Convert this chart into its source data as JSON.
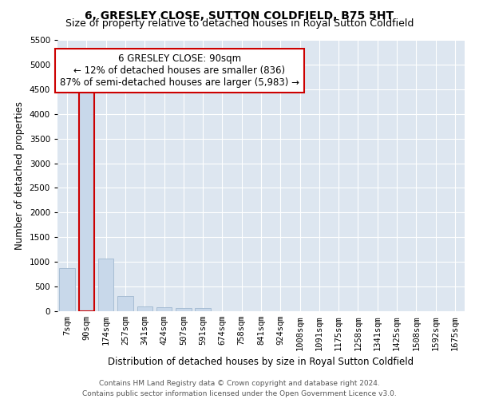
{
  "title": "6, GRESLEY CLOSE, SUTTON COLDFIELD, B75 5HT",
  "subtitle": "Size of property relative to detached houses in Royal Sutton Coldfield",
  "xlabel": "Distribution of detached houses by size in Royal Sutton Coldfield",
  "ylabel": "Number of detached properties",
  "footer_line1": "Contains HM Land Registry data © Crown copyright and database right 2024.",
  "footer_line2": "Contains public sector information licensed under the Open Government Licence v3.0.",
  "annotation_line1": "6 GRESLEY CLOSE: 90sqm",
  "annotation_line2": "← 12% of detached houses are smaller (836)",
  "annotation_line3": "87% of semi-detached houses are larger (5,983) →",
  "categories": [
    "7sqm",
    "90sqm",
    "174sqm",
    "257sqm",
    "341sqm",
    "424sqm",
    "507sqm",
    "591sqm",
    "674sqm",
    "758sqm",
    "841sqm",
    "924sqm",
    "1008sqm",
    "1091sqm",
    "1175sqm",
    "1258sqm",
    "1341sqm",
    "1425sqm",
    "1508sqm",
    "1592sqm",
    "1675sqm"
  ],
  "values": [
    880,
    4560,
    1060,
    300,
    95,
    75,
    60,
    70,
    0,
    0,
    0,
    0,
    0,
    0,
    0,
    0,
    0,
    0,
    0,
    0,
    0
  ],
  "bar_color": "#c8d8ea",
  "bar_edge_color": "#a0b8d0",
  "highlight_bar_index": 1,
  "highlight_edge_color": "#cc0000",
  "ylim": [
    0,
    5500
  ],
  "yticks": [
    0,
    500,
    1000,
    1500,
    2000,
    2500,
    3000,
    3500,
    4000,
    4500,
    5000,
    5500
  ],
  "fig_bg_color": "#ffffff",
  "axes_bg_color": "#dde6f0",
  "grid_color": "#ffffff",
  "title_fontsize": 10,
  "subtitle_fontsize": 9,
  "axis_label_fontsize": 8.5,
  "tick_fontsize": 7.5,
  "annotation_fontsize": 8.5,
  "footer_fontsize": 6.5
}
